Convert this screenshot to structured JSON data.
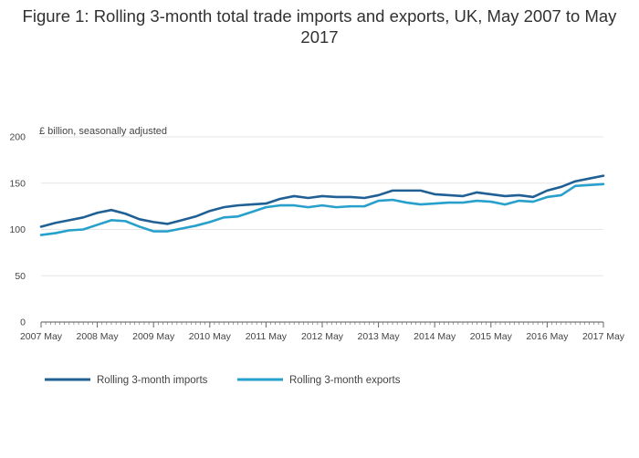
{
  "chart_data": {
    "type": "line",
    "title": "Figure 1: Rolling 3-month total trade imports and exports, UK, May 2007 to May 2017",
    "ylabel": "£ billion, seasonally adjusted",
    "xlabel": "",
    "ylim": [
      0,
      200
    ],
    "y_ticks": [
      0,
      50,
      100,
      150,
      200
    ],
    "x_range": [
      "2007-05",
      "2017-05"
    ],
    "x_tick_labels": [
      "2007 May",
      "2008 May",
      "2009 May",
      "2010 May",
      "2011 May",
      "2012 May",
      "2013 May",
      "2014 May",
      "2015 May",
      "2016 May",
      "2017 May"
    ],
    "grid": "horizontal",
    "legend_position": "bottom",
    "series": [
      {
        "name": "Rolling 3-month imports",
        "color": "#206095",
        "points": [
          [
            "2007-05",
            103
          ],
          [
            "2007-08",
            107
          ],
          [
            "2007-11",
            110
          ],
          [
            "2008-02",
            113
          ],
          [
            "2008-05",
            118
          ],
          [
            "2008-08",
            121
          ],
          [
            "2008-11",
            117
          ],
          [
            "2009-02",
            111
          ],
          [
            "2009-05",
            108
          ],
          [
            "2009-08",
            106
          ],
          [
            "2009-11",
            110
          ],
          [
            "2010-02",
            114
          ],
          [
            "2010-05",
            120
          ],
          [
            "2010-08",
            124
          ],
          [
            "2010-11",
            126
          ],
          [
            "2011-02",
            127
          ],
          [
            "2011-05",
            128
          ],
          [
            "2011-08",
            133
          ],
          [
            "2011-11",
            136
          ],
          [
            "2012-02",
            134
          ],
          [
            "2012-05",
            136
          ],
          [
            "2012-08",
            135
          ],
          [
            "2012-11",
            135
          ],
          [
            "2013-02",
            134
          ],
          [
            "2013-05",
            137
          ],
          [
            "2013-08",
            142
          ],
          [
            "2013-11",
            142
          ],
          [
            "2014-02",
            142
          ],
          [
            "2014-05",
            138
          ],
          [
            "2014-08",
            137
          ],
          [
            "2014-11",
            136
          ],
          [
            "2015-02",
            140
          ],
          [
            "2015-05",
            138
          ],
          [
            "2015-08",
            136
          ],
          [
            "2015-11",
            137
          ],
          [
            "2016-02",
            135
          ],
          [
            "2016-05",
            142
          ],
          [
            "2016-08",
            146
          ],
          [
            "2016-11",
            152
          ],
          [
            "2017-02",
            155
          ],
          [
            "2017-05",
            158
          ]
        ]
      },
      {
        "name": "Rolling 3-month exports",
        "color": "#27a0cc",
        "points": [
          [
            "2007-05",
            94
          ],
          [
            "2007-08",
            96
          ],
          [
            "2007-11",
            99
          ],
          [
            "2008-02",
            100
          ],
          [
            "2008-05",
            105
          ],
          [
            "2008-08",
            110
          ],
          [
            "2008-11",
            109
          ],
          [
            "2009-02",
            103
          ],
          [
            "2009-05",
            98
          ],
          [
            "2009-08",
            98
          ],
          [
            "2009-11",
            101
          ],
          [
            "2010-02",
            104
          ],
          [
            "2010-05",
            108
          ],
          [
            "2010-08",
            113
          ],
          [
            "2010-11",
            114
          ],
          [
            "2011-02",
            119
          ],
          [
            "2011-05",
            124
          ],
          [
            "2011-08",
            126
          ],
          [
            "2011-11",
            126
          ],
          [
            "2012-02",
            124
          ],
          [
            "2012-05",
            126
          ],
          [
            "2012-08",
            124
          ],
          [
            "2012-11",
            125
          ],
          [
            "2013-02",
            125
          ],
          [
            "2013-05",
            131
          ],
          [
            "2013-08",
            132
          ],
          [
            "2013-11",
            129
          ],
          [
            "2014-02",
            127
          ],
          [
            "2014-05",
            128
          ],
          [
            "2014-08",
            129
          ],
          [
            "2014-11",
            129
          ],
          [
            "2015-02",
            131
          ],
          [
            "2015-05",
            130
          ],
          [
            "2015-08",
            127
          ],
          [
            "2015-11",
            131
          ],
          [
            "2016-02",
            130
          ],
          [
            "2016-05",
            135
          ],
          [
            "2016-08",
            137
          ],
          [
            "2016-11",
            147
          ],
          [
            "2017-02",
            148
          ],
          [
            "2017-05",
            149
          ]
        ]
      }
    ]
  }
}
